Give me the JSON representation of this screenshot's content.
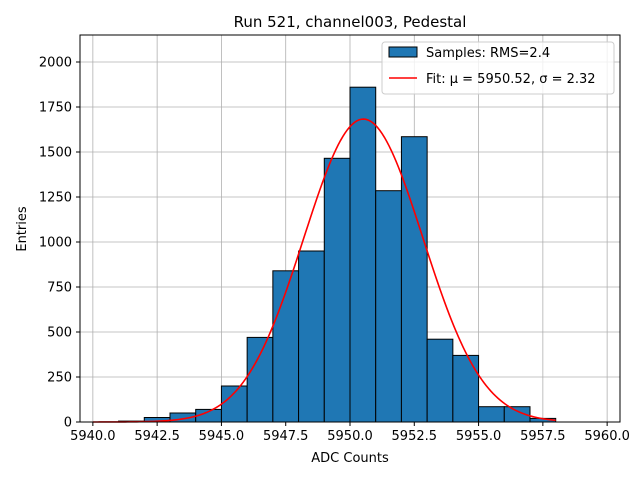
{
  "chart_data": {
    "type": "bar",
    "title": "Run 521, channel003, Pedestal",
    "xlabel": "ADC Counts",
    "ylabel": "Entries",
    "xlim": [
      5939.5,
      5960.5
    ],
    "ylim": [
      0,
      2150
    ],
    "grid": true,
    "legend_position": "top-right",
    "x_ticks": [
      5940.0,
      5942.5,
      5945.0,
      5947.5,
      5950.0,
      5952.5,
      5955.0,
      5957.5,
      5960.0
    ],
    "x_tick_labels": [
      "5940.0",
      "5942.5",
      "5945.0",
      "5947.5",
      "5950.0",
      "5952.5",
      "5955.0",
      "5957.5",
      "5960.0"
    ],
    "y_ticks": [
      0,
      250,
      500,
      750,
      1000,
      1250,
      1500,
      1750,
      2000
    ],
    "y_tick_labels": [
      "0",
      "250",
      "500",
      "750",
      "1000",
      "1250",
      "1500",
      "1750",
      "2000"
    ],
    "bin_width": 1.0,
    "bins": [
      {
        "left": 5941,
        "value": 5
      },
      {
        "left": 5942,
        "value": 25
      },
      {
        "left": 5943,
        "value": 50
      },
      {
        "left": 5944,
        "value": 70
      },
      {
        "left": 5945,
        "value": 200
      },
      {
        "left": 5946,
        "value": 470
      },
      {
        "left": 5947,
        "value": 840
      },
      {
        "left": 5948,
        "value": 950
      },
      {
        "left": 5949,
        "value": 1465
      },
      {
        "left": 5950,
        "value": 1860
      },
      {
        "left": 5951,
        "value": 1285
      },
      {
        "left": 5952,
        "value": 1585
      },
      {
        "left": 5953,
        "value": 460
      },
      {
        "left": 5954,
        "value": 370
      },
      {
        "left": 5955,
        "value": 85
      },
      {
        "left": 5956,
        "value": 85
      },
      {
        "left": 5957,
        "value": 20
      }
    ],
    "fit": {
      "mu": 5950.52,
      "sigma": 2.32,
      "amplitude": 1683,
      "x_range": [
        5940.0,
        5958.0
      ]
    },
    "series": [
      {
        "name": "Samples: RMS=2.4",
        "type": "histogram",
        "color": "#1f77b4"
      },
      {
        "name": "Fit: μ = 5950.52, σ = 2.32",
        "type": "line",
        "color": "#ff0000"
      }
    ]
  }
}
